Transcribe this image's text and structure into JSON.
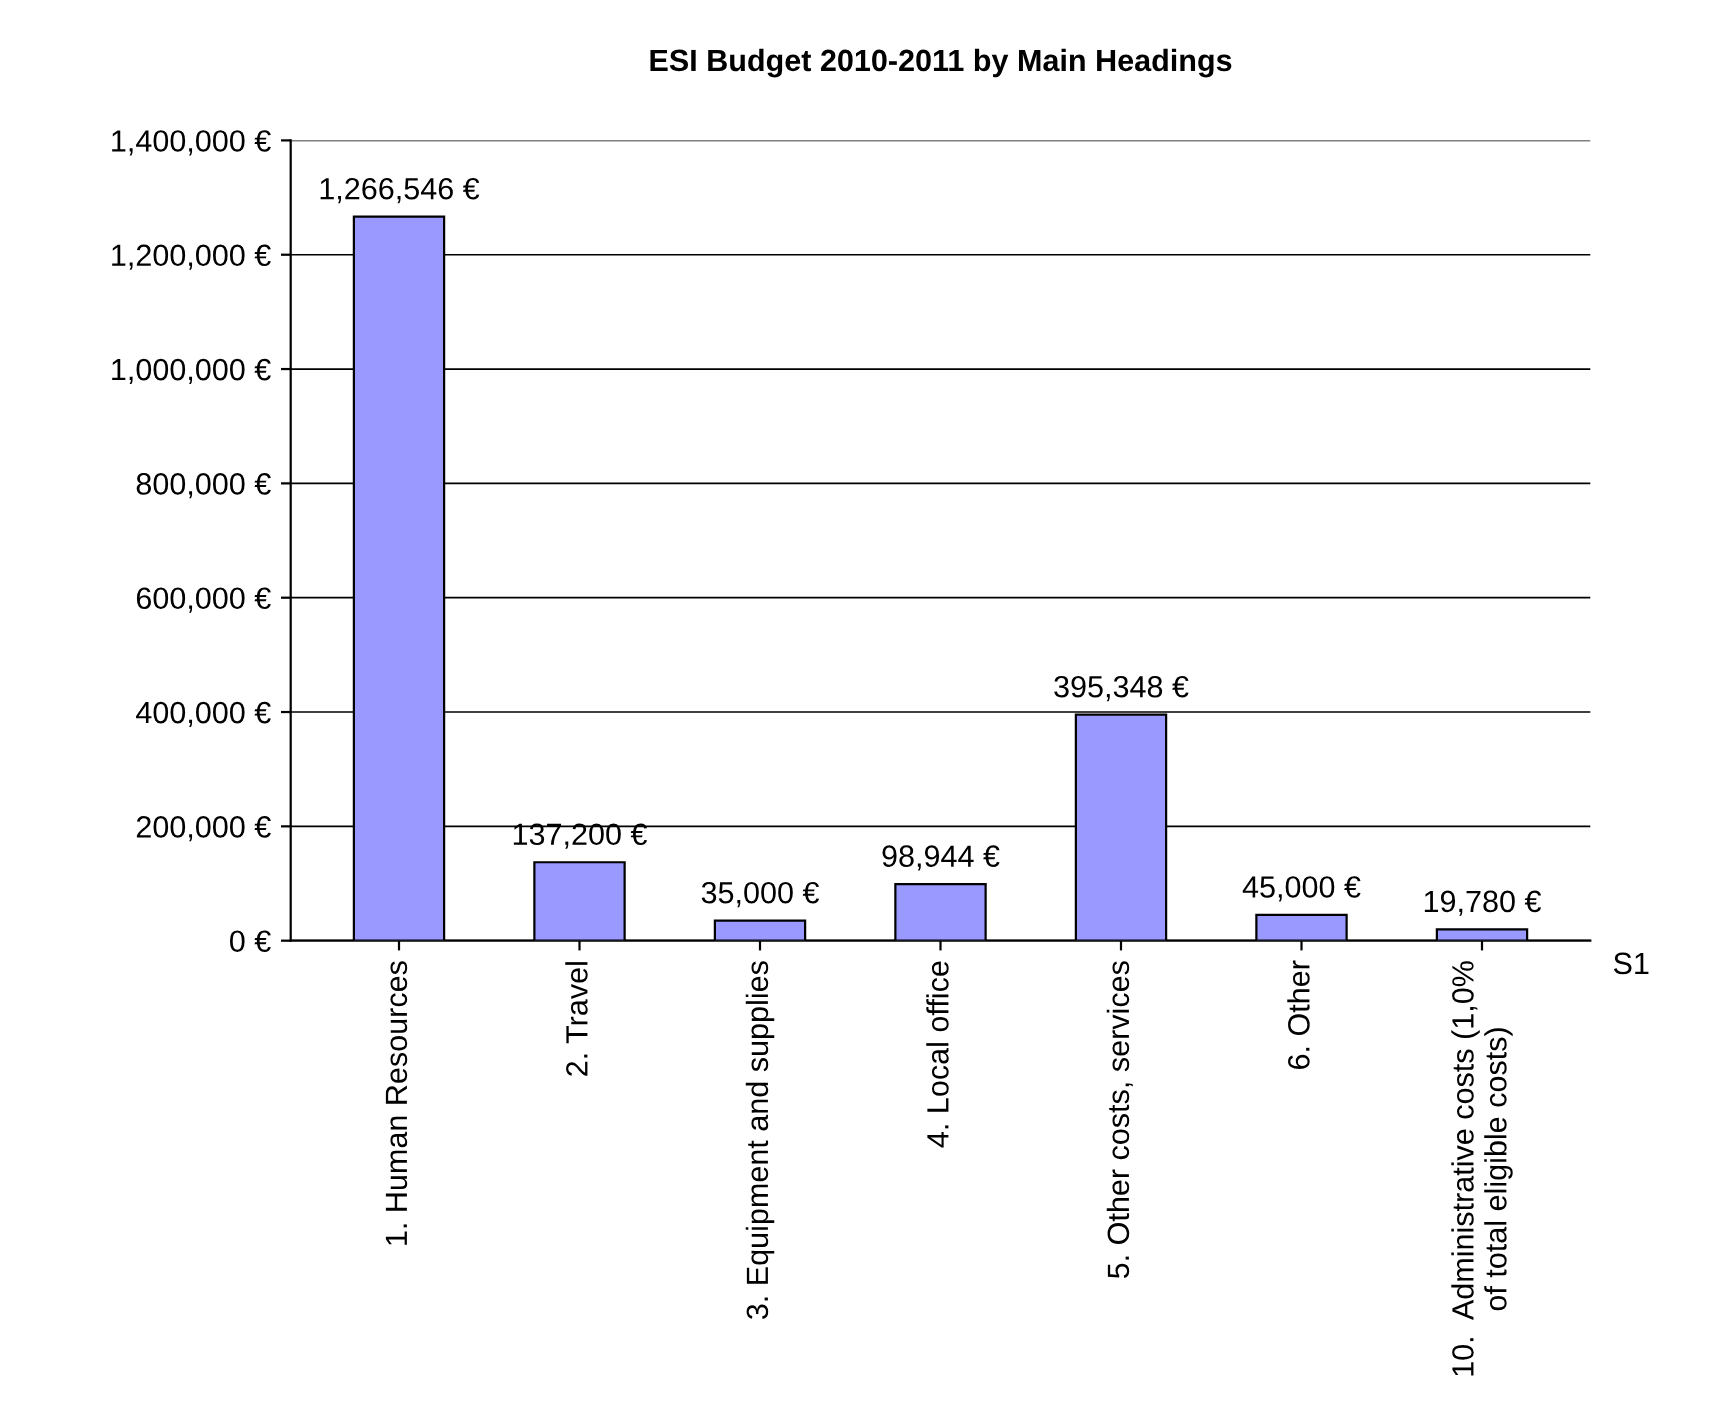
{
  "chart_data": {
    "type": "bar",
    "title": "ESI Budget 2010-2011 by Main Headings",
    "categories": [
      "1. Human Resources",
      "2. Travel",
      "3. Equipment and supplies",
      "4. Local office",
      "5. Other costs, services",
      "6. Other",
      "10.  Administrative costs (1,0%\nof total eligible costs)"
    ],
    "series": [
      {
        "name": "S1",
        "color": "#9999ff",
        "values": [
          1266546,
          137200,
          35000,
          98944,
          395348,
          45000,
          19780
        ],
        "value_labels": [
          "1,266,546 €",
          "137,200 €",
          "35,000 €",
          "98,944 €",
          "395,348 €",
          "45,000 €",
          "19,780 €"
        ]
      }
    ],
    "ylim": [
      0,
      1400000
    ],
    "yticks": [
      {
        "value": 0,
        "label": "0 €"
      },
      {
        "value": 200000,
        "label": "200,000 €"
      },
      {
        "value": 400000,
        "label": "400,000 €"
      },
      {
        "value": 600000,
        "label": "600,000 €"
      },
      {
        "value": 800000,
        "label": "800,000 €"
      },
      {
        "value": 1000000,
        "label": "1,000,000 €"
      },
      {
        "value": 1200000,
        "label": "1,200,000 €"
      },
      {
        "value": 1400000,
        "label": "1,400,000 €"
      }
    ],
    "grid": "y",
    "legend": false
  }
}
